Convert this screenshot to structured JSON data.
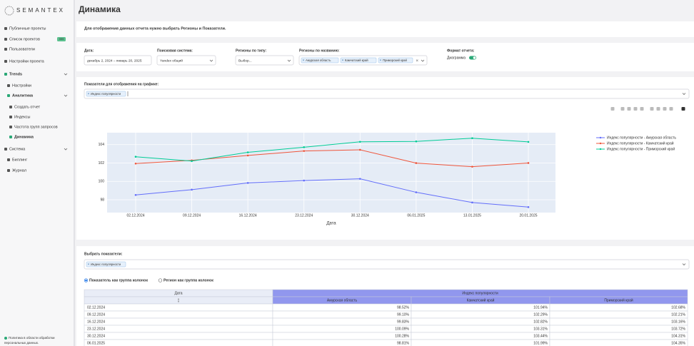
{
  "sidebar": {
    "logo": "SEMANTEX",
    "menu": [
      {
        "label": "Публичные проекты"
      },
      {
        "label": "Список проектов",
        "badge": "999"
      },
      {
        "label": "Пользователи"
      },
      {
        "label": "Настройки проекта"
      },
      {
        "label": "Trends"
      },
      {
        "label": "Настройки"
      },
      {
        "label": "Аналитика"
      },
      {
        "label": "Создать отчет"
      },
      {
        "label": "Индексы"
      },
      {
        "label": "Частота групп запросов"
      },
      {
        "label": "Динамика"
      },
      {
        "label": "Система"
      },
      {
        "label": "Биллинг"
      },
      {
        "label": "Журнал"
      }
    ],
    "footer": [
      "Политика в области обработки",
      "персональных данных."
    ]
  },
  "header": {
    "title": "Динамика"
  },
  "notice": "Для отображения данных отчета нужно выбрать Регионы и Показатели.",
  "filters": {
    "date": {
      "label": "Дата:",
      "value": "декабрь 2, 2024 – январь 20, 2025"
    },
    "engine": {
      "label": "Поисковая система:",
      "value": "Yandex общий"
    },
    "region_type": {
      "label": "Регионы по типу:",
      "placeholder": "Выбор..."
    },
    "region_names": {
      "label": "Регионы по названию:",
      "tags": [
        "Амурская область",
        "Камчатский край",
        "Приморский край"
      ]
    },
    "format": {
      "label": "Формат отчета:",
      "value": "Диаграмма"
    }
  },
  "indicators": {
    "label": "Показатели для отображения на графике:",
    "tags": [
      "Индекс популярности"
    ]
  },
  "chart_data": {
    "type": "line",
    "x": [
      "02.12.2024",
      "09.12.2024",
      "16.12.2024",
      "23.12.2024",
      "30.12.2024",
      "06.01.2025",
      "13.01.2025",
      "20.01.2025"
    ],
    "x_label": "Дата",
    "ylim": [
      96.6,
      105.3
    ],
    "yticks": [
      98,
      100,
      102,
      104
    ],
    "grid": true,
    "legend": "right",
    "series": [
      {
        "name": "Индекс популярности - Амурская область",
        "color": "#636efa",
        "values": [
          98.52,
          99.1,
          99.83,
          100.09,
          100.28,
          98.81,
          97.7,
          97.2
        ]
      },
      {
        "name": "Индекс популярности - Камчатский край",
        "color": "#ef553b",
        "values": [
          101.94,
          102.29,
          102.82,
          103.31,
          103.44,
          101.99,
          101.6,
          102.0
        ]
      },
      {
        "name": "Индекс популярности - Приморский край",
        "color": "#00cc96",
        "values": [
          102.68,
          102.21,
          103.16,
          103.72,
          104.31,
          104.35,
          104.7,
          104.3
        ]
      }
    ]
  },
  "select_indicators": {
    "label": "Выбрать показатели:",
    "tags": [
      "Индекс популярности"
    ]
  },
  "radios": [
    "Показатель как группа колонок",
    "Регион как группа колонок"
  ],
  "table": {
    "header": [
      "Дата",
      "Индекс популярности"
    ],
    "columns": [
      "Амурская область",
      "Камчатский край",
      "Приморский край"
    ],
    "rows": [
      [
        "02.12.2024",
        "98.52%",
        "101.94%",
        "102.68%"
      ],
      [
        "09.12.2024",
        "99.10%",
        "102.29%",
        "102.21%"
      ],
      [
        "16.12.2024",
        "99.83%",
        "102.82%",
        "103.16%"
      ],
      [
        "23.12.2024",
        "100.09%",
        "103.31%",
        "103.72%"
      ],
      [
        "30.12.2024",
        "100.28%",
        "103.44%",
        "104.31%"
      ],
      [
        "06.01.2025",
        "98.81%",
        "101.99%",
        "104.35%"
      ]
    ]
  }
}
